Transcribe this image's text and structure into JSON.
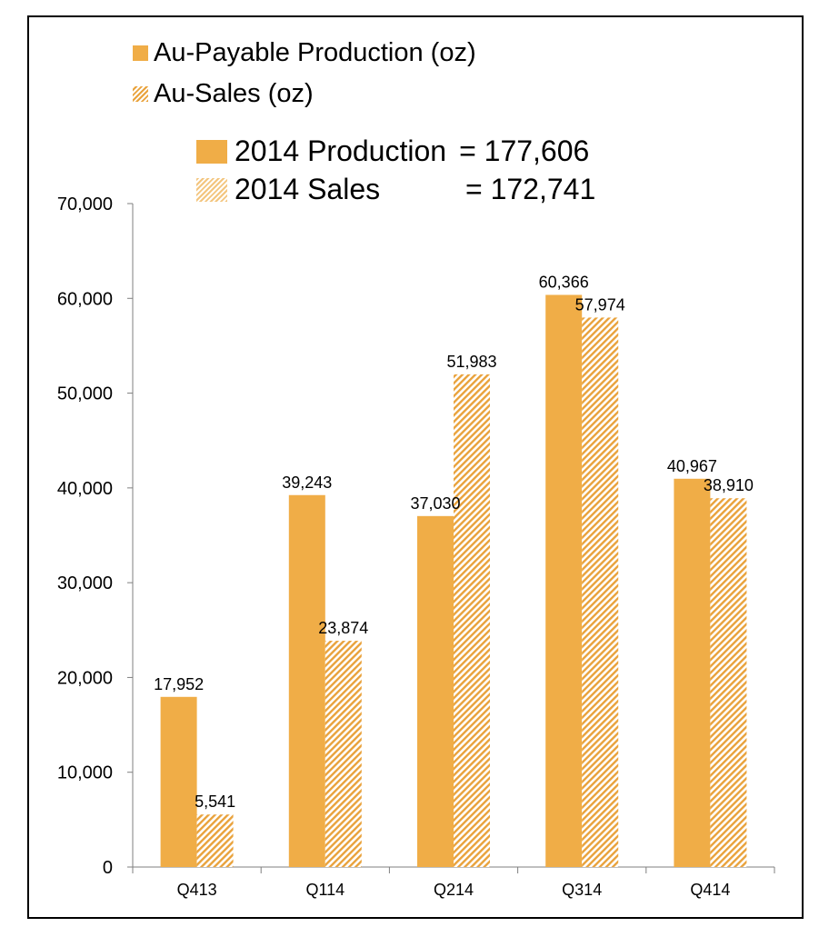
{
  "legend": {
    "production": "Au-Payable Production (oz)",
    "sales": "Au-Sales (oz)"
  },
  "summary": {
    "production_label": "2014 Production",
    "production_value": "= 177,606",
    "sales_label": "2014 Sales",
    "sales_value": "= 172,741"
  },
  "colors": {
    "production": "#F0AD47",
    "sales_hatch": "#E9A23B"
  },
  "chart_data": {
    "type": "bar",
    "categories": [
      "Q413",
      "Q114",
      "Q214",
      "Q314",
      "Q414"
    ],
    "series": [
      {
        "name": "Au-Payable Production (oz)",
        "style": "solid",
        "values": [
          17952,
          39243,
          37030,
          60366,
          40967
        ],
        "labels": [
          "17,952",
          "39,243",
          "37,030",
          "60,366",
          "40,967"
        ]
      },
      {
        "name": "Au-Sales (oz)",
        "style": "hatched",
        "values": [
          5541,
          23874,
          51983,
          57974,
          38910
        ],
        "labels": [
          "5,541",
          "23,874",
          "51,983",
          "57,974",
          "38,910"
        ]
      }
    ],
    "ylim": [
      0,
      70000
    ],
    "yticks": [
      0,
      10000,
      20000,
      30000,
      40000,
      50000,
      60000,
      70000
    ],
    "ytick_labels": [
      "0",
      "10,000",
      "20,000",
      "30,000",
      "40,000",
      "50,000",
      "60,000",
      "70,000"
    ],
    "grid": false,
    "legend_position": "top-left"
  }
}
